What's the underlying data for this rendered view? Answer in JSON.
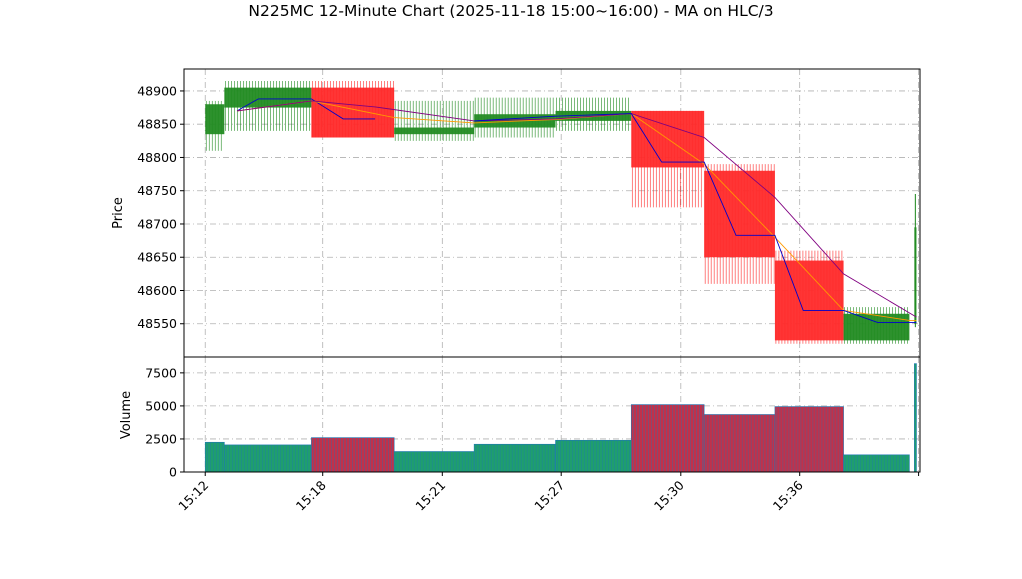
{
  "chart_data": {
    "type": "candlestick",
    "title": "N225MC 12-Minute Chart (2025-11-18 15:00~16:00) - MA on HLC/3",
    "price_panel": {
      "ylabel": "Price",
      "ylim": [
        48500,
        48933
      ],
      "yticks": [
        48550,
        48600,
        48650,
        48700,
        48750,
        48800,
        48850,
        48900
      ]
    },
    "volume_panel": {
      "ylabel": "Volume",
      "ylim": [
        0,
        8700
      ],
      "yticks": [
        0,
        2500,
        5000,
        7500
      ]
    },
    "xlim": [
      -0.3,
      10.1
    ],
    "x_ticks": [
      {
        "pos": 0,
        "label": "15:12"
      },
      {
        "pos": 1.66,
        "label": "15:18"
      },
      {
        "pos": 3.35,
        "label": "15:21"
      },
      {
        "pos": 5.03,
        "label": "15:27"
      },
      {
        "pos": 6.72,
        "label": "15:30"
      },
      {
        "pos": 8.4,
        "label": "15:36"
      },
      {
        "pos": 10.08,
        "label": ""
      }
    ],
    "candles": [
      {
        "x0": 0.0,
        "x1": 0.27,
        "open": 48835,
        "high": 48885,
        "low": 48810,
        "close": 48880,
        "volume": 2250
      },
      {
        "x0": 0.27,
        "x1": 1.5,
        "open": 48875,
        "high": 48915,
        "low": 48840,
        "close": 48905,
        "volume": 2050
      },
      {
        "x0": 1.5,
        "x1": 2.67,
        "open": 48905,
        "high": 48915,
        "low": 48830,
        "close": 48830,
        "volume": 2600
      },
      {
        "x0": 2.67,
        "x1": 3.8,
        "open": 48835,
        "high": 48885,
        "low": 48825,
        "close": 48845,
        "volume": 1550
      },
      {
        "x0": 3.8,
        "x1": 4.95,
        "open": 48845,
        "high": 48890,
        "low": 48830,
        "close": 48865,
        "volume": 2100
      },
      {
        "x0": 4.95,
        "x1": 6.02,
        "open": 48855,
        "high": 48890,
        "low": 48840,
        "close": 48870,
        "volume": 2400
      },
      {
        "x0": 6.02,
        "x1": 7.05,
        "open": 48870,
        "high": 48870,
        "low": 48725,
        "close": 48785,
        "volume": 5100
      },
      {
        "x0": 7.05,
        "x1": 8.05,
        "open": 48780,
        "high": 48790,
        "low": 48610,
        "close": 48650,
        "volume": 4350
      },
      {
        "x0": 8.05,
        "x1": 9.02,
        "open": 48645,
        "high": 48660,
        "low": 48520,
        "close": 48525,
        "volume": 4950
      },
      {
        "x0": 9.02,
        "x1": 9.95,
        "open": 48525,
        "high": 48575,
        "low": 48520,
        "close": 48565,
        "volume": 1300
      },
      {
        "x0": 10.02,
        "x1": 10.05,
        "open": 48550,
        "high": 48745,
        "low": 48545,
        "close": 48695,
        "volume": 8200
      }
    ],
    "moving_averages": [
      {
        "color": "#0000cc",
        "points": [
          [
            0.45,
            48870
          ],
          [
            0.75,
            48888
          ],
          [
            1.5,
            48888
          ],
          [
            1.95,
            48858
          ],
          [
            2.4,
            48858
          ]
        ]
      },
      {
        "color": "#ff9900",
        "points": [
          [
            0.45,
            48870
          ],
          [
            1.5,
            48885
          ],
          [
            2.67,
            48860
          ],
          [
            3.8,
            48852
          ],
          [
            4.95,
            48857
          ],
          [
            6.02,
            48866
          ],
          [
            7.05,
            48790
          ],
          [
            8.05,
            48680
          ],
          [
            9.02,
            48570
          ],
          [
            9.95,
            48555
          ],
          [
            10.05,
            48555
          ]
        ]
      },
      {
        "color": "#800080",
        "points": [
          [
            0.45,
            48870
          ],
          [
            1.5,
            48885
          ],
          [
            2.4,
            48876
          ],
          [
            3.8,
            48855
          ],
          [
            4.95,
            48858
          ],
          [
            6.02,
            48866
          ],
          [
            7.05,
            48830
          ],
          [
            8.05,
            48740
          ],
          [
            9.02,
            48625
          ],
          [
            10.05,
            48560
          ]
        ]
      },
      {
        "color": "#0000cc",
        "points": [
          [
            3.8,
            48855
          ],
          [
            4.95,
            48862
          ],
          [
            6.02,
            48866
          ],
          [
            6.45,
            48793
          ],
          [
            7.05,
            48793
          ],
          [
            7.5,
            48683
          ],
          [
            8.05,
            48683
          ],
          [
            8.45,
            48570
          ],
          [
            9.02,
            48570
          ],
          [
            9.5,
            48552
          ],
          [
            10.05,
            48552
          ]
        ]
      }
    ],
    "colors": {
      "up": "#228b22",
      "down": "#ff2a2a",
      "vol_up": "#1f9e6e",
      "vol_down": "#c0314b",
      "vol_edge": "#1f77b4",
      "grid": "#b0b0b0"
    },
    "grid": true
  }
}
